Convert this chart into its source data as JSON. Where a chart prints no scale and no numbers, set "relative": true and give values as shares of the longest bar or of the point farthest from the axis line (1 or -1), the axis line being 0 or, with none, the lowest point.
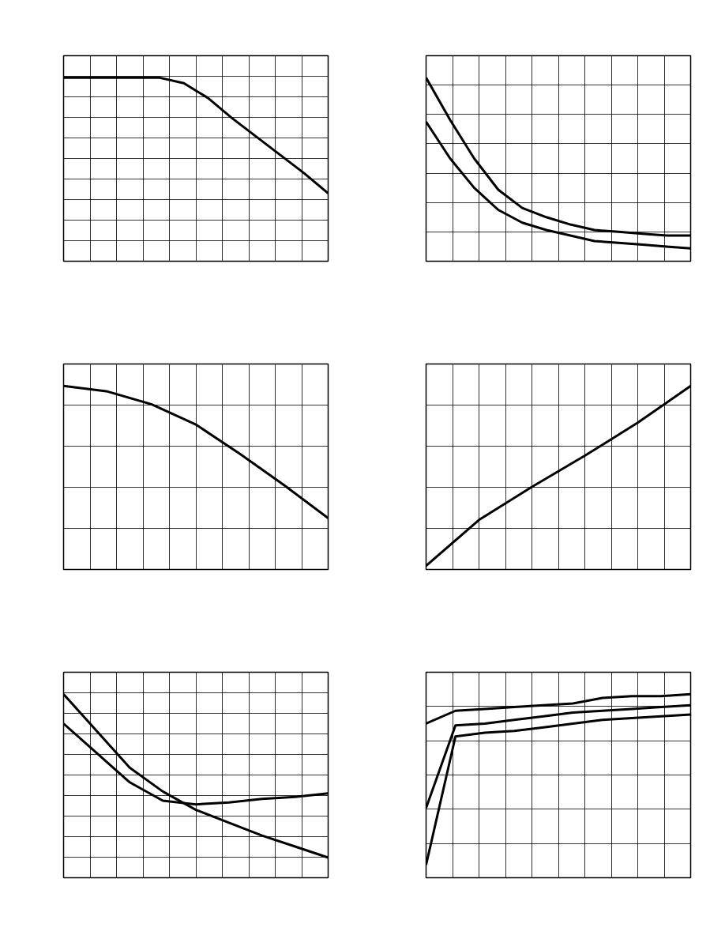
{
  "chart_data": [
    {
      "type": "line",
      "relative": true,
      "grid": true,
      "tick_labels": false,
      "categories": [
        null,
        null,
        null,
        null,
        null,
        null,
        null,
        null,
        null,
        null,
        null,
        null
      ],
      "series": [
        {
          "color": "#000000",
          "values": [
            1,
            1,
            1,
            1,
            1,
            0.97,
            0.89,
            0.78,
            0.68,
            0.58,
            0.48,
            0.37
          ]
        }
      ]
    },
    {
      "type": "line",
      "relative": true,
      "grid": true,
      "tick_labels": false,
      "categories": [
        null,
        null,
        null,
        null,
        null,
        null,
        null,
        null,
        null,
        null,
        null,
        null
      ],
      "series": [
        {
          "color": "#000000",
          "values": [
            1,
            0.77,
            0.56,
            0.39,
            0.29,
            0.24,
            0.2,
            0.17,
            0.16,
            0.15,
            0.14,
            0.14
          ]
        },
        {
          "color": "#000000",
          "values": [
            0.76,
            0.56,
            0.4,
            0.28,
            0.21,
            0.17,
            0.14,
            0.11,
            0.1,
            0.09,
            0.08,
            0.07
          ]
        }
      ]
    },
    {
      "type": "line",
      "relative": true,
      "grid": true,
      "tick_labels": false,
      "categories": [
        null,
        null,
        null,
        null,
        null,
        null,
        null
      ],
      "series": [
        {
          "color": "#000000",
          "values": [
            1,
            0.97,
            0.9,
            0.79,
            0.63,
            0.46,
            0.28
          ]
        }
      ]
    },
    {
      "type": "line",
      "relative": true,
      "grid": true,
      "tick_labels": false,
      "categories": [
        null,
        null,
        null,
        null,
        null,
        null
      ],
      "series": [
        {
          "color": "#000000",
          "values": [
            0.02,
            0.27,
            0.45,
            0.62,
            0.8,
            1
          ]
        }
      ]
    },
    {
      "type": "line",
      "relative": true,
      "grid": true,
      "tick_labels": false,
      "categories": [
        null,
        null,
        null,
        null,
        null,
        null,
        null,
        null,
        null
      ],
      "series": [
        {
          "color": "#000000",
          "values": [
            1,
            0.8,
            0.6,
            0.47,
            0.37,
            0.3,
            0.23,
            0.17,
            0.11
          ]
        },
        {
          "color": "#000000",
          "values": [
            0.84,
            0.68,
            0.52,
            0.42,
            0.4,
            0.41,
            0.43,
            0.44,
            0.46
          ]
        }
      ]
    },
    {
      "type": "line",
      "relative": true,
      "grid": true,
      "tick_labels": false,
      "categories": [
        null,
        null,
        null,
        null,
        null,
        null,
        null,
        null,
        null,
        null
      ],
      "series": [
        {
          "color": "#000000",
          "values": [
            0.84,
            0.91,
            0.92,
            0.93,
            0.94,
            0.95,
            0.98,
            0.99,
            0.99,
            1
          ]
        },
        {
          "color": "#000000",
          "values": [
            0.38,
            0.83,
            0.84,
            0.86,
            0.88,
            0.9,
            0.91,
            0.92,
            0.93,
            0.94
          ]
        },
        {
          "color": "#000000",
          "values": [
            0.07,
            0.77,
            0.79,
            0.8,
            0.82,
            0.84,
            0.86,
            0.87,
            0.88,
            0.89
          ]
        }
      ]
    }
  ]
}
